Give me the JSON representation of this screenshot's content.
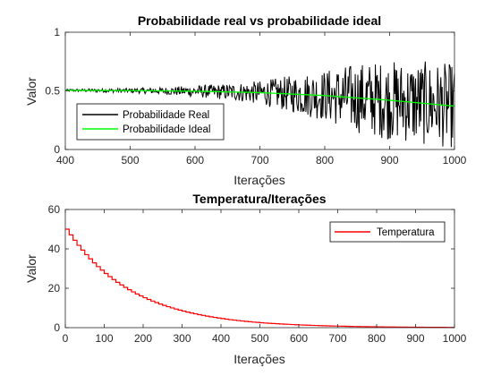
{
  "chart_data": [
    {
      "type": "line",
      "title": "Probabilidade real vs probabilidade ideal",
      "xlabel": "Iterações",
      "ylabel": "Valor",
      "xlim": [
        400,
        1000
      ],
      "ylim": [
        0,
        1
      ],
      "xticks": [
        400,
        500,
        600,
        700,
        800,
        900,
        1000
      ],
      "yticks": [
        0,
        0.5,
        1
      ],
      "ytick_labels": [
        "0",
        "0.5",
        "1"
      ],
      "grid": false,
      "legend_position": "bottom-left",
      "series": [
        {
          "name": "Probabilidade Real",
          "color": "#000000",
          "x": [
            400,
            450,
            500,
            550,
            600,
            650,
            700,
            750,
            800,
            850,
            900,
            950,
            1000
          ],
          "envelope_halfwidth": [
            0.01,
            0.015,
            0.02,
            0.03,
            0.05,
            0.07,
            0.1,
            0.16,
            0.22,
            0.3,
            0.34,
            0.36,
            0.36
          ]
        },
        {
          "name": "Probabilidade Ideal",
          "color": "#00ff00",
          "x": [
            400,
            500,
            600,
            700,
            800,
            900,
            1000
          ],
          "y": [
            0.505,
            0.502,
            0.497,
            0.485,
            0.46,
            0.42,
            0.37
          ]
        }
      ]
    },
    {
      "type": "line",
      "title": "Temperatura/Iterações",
      "xlabel": "Iterações",
      "ylabel": "Valor",
      "xlim": [
        0,
        1000
      ],
      "ylim": [
        0,
        60
      ],
      "xticks": [
        0,
        100,
        200,
        300,
        400,
        500,
        600,
        700,
        800,
        900,
        1000
      ],
      "yticks": [
        0,
        20,
        40,
        60
      ],
      "grid": false,
      "legend_position": "top-right",
      "series": [
        {
          "name": "Temperatura",
          "color": "#ff0000",
          "style": "step",
          "step_width": 10,
          "x": [
            0,
            100,
            200,
            300,
            400,
            500,
            600,
            700,
            800,
            900,
            1000
          ],
          "y": [
            50,
            27.5,
            15.2,
            8.4,
            4.6,
            2.5,
            1.4,
            0.77,
            0.42,
            0.23,
            0.13
          ]
        }
      ]
    }
  ]
}
